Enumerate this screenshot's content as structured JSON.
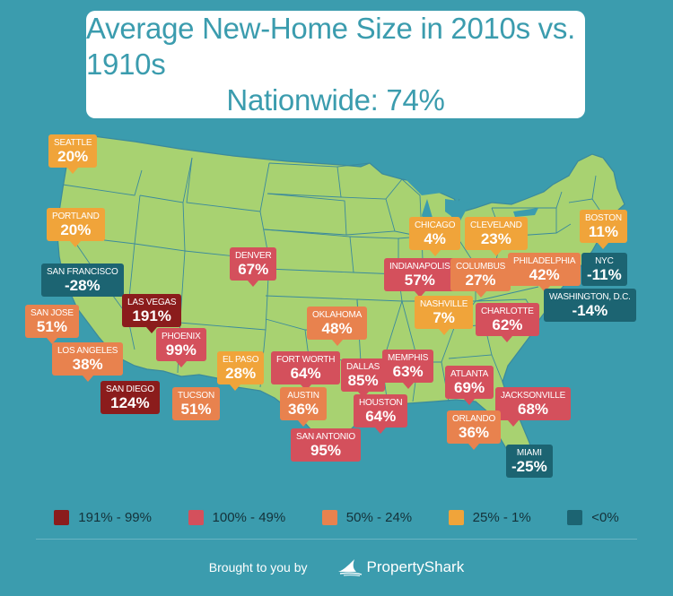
{
  "title": {
    "line1": "Average New-Home Size in 2010s vs. 1910s",
    "line2": "Nationwide: 74%"
  },
  "colors": {
    "background": "#3b9cae",
    "land": "#a8d271",
    "border": "#3b8a9c",
    "dark_red": "#8b1c1c",
    "red": "#d4505c",
    "orange": "#e8824e",
    "yellow": "#f0a43a",
    "teal": "#1c6472"
  },
  "cities": [
    {
      "name": "Seattle",
      "value": "20%",
      "bucket": "yellow"
    },
    {
      "name": "Portland",
      "value": "20%",
      "bucket": "yellow"
    },
    {
      "name": "San Francisco",
      "value": "-28%",
      "bucket": "teal"
    },
    {
      "name": "San Jose",
      "value": "51%",
      "bucket": "orange"
    },
    {
      "name": "Las Vegas",
      "value": "191%",
      "bucket": "dark_red"
    },
    {
      "name": "Los Angeles",
      "value": "38%",
      "bucket": "orange"
    },
    {
      "name": "San Diego",
      "value": "124%",
      "bucket": "dark_red"
    },
    {
      "name": "Phoenix",
      "value": "99%",
      "bucket": "red"
    },
    {
      "name": "Tucson",
      "value": "51%",
      "bucket": "orange"
    },
    {
      "name": "Denver",
      "value": "67%",
      "bucket": "red"
    },
    {
      "name": "El Paso",
      "value": "28%",
      "bucket": "yellow"
    },
    {
      "name": "Fort Worth",
      "value": "64%",
      "bucket": "red"
    },
    {
      "name": "Oklahoma",
      "value": "48%",
      "bucket": "orange"
    },
    {
      "name": "Dallas",
      "value": "85%",
      "bucket": "red"
    },
    {
      "name": "Austin",
      "value": "36%",
      "bucket": "orange"
    },
    {
      "name": "San Antonio",
      "value": "95%",
      "bucket": "red"
    },
    {
      "name": "Houston",
      "value": "64%",
      "bucket": "red"
    },
    {
      "name": "Memphis",
      "value": "63%",
      "bucket": "red"
    },
    {
      "name": "Chicago",
      "value": "4%",
      "bucket": "yellow"
    },
    {
      "name": "Indianapolis",
      "value": "57%",
      "bucket": "red"
    },
    {
      "name": "Nashville",
      "value": "7%",
      "bucket": "yellow"
    },
    {
      "name": "Cleveland",
      "value": "23%",
      "bucket": "yellow"
    },
    {
      "name": "Columbus",
      "value": "27%",
      "bucket": "orange"
    },
    {
      "name": "Charlotte",
      "value": "62%",
      "bucket": "red"
    },
    {
      "name": "Atlanta",
      "value": "69%",
      "bucket": "red"
    },
    {
      "name": "Jacksonville",
      "value": "68%",
      "bucket": "red"
    },
    {
      "name": "Orlando",
      "value": "36%",
      "bucket": "orange"
    },
    {
      "name": "Miami",
      "value": "-25%",
      "bucket": "teal"
    },
    {
      "name": "Philadelphia",
      "value": "42%",
      "bucket": "orange"
    },
    {
      "name": "Boston",
      "value": "11%",
      "bucket": "yellow"
    },
    {
      "name": "NYC",
      "value": "-11%",
      "bucket": "teal"
    },
    {
      "name": "Washington, D.C.",
      "value": "-14%",
      "bucket": "teal"
    }
  ],
  "legend": [
    {
      "label": "191% - 99%",
      "color": "#8b1c1c"
    },
    {
      "label": "100% - 49%",
      "color": "#d4505c"
    },
    {
      "label": "50% - 24%",
      "color": "#e8824e"
    },
    {
      "label": "25% - 1%",
      "color": "#f0a43a"
    },
    {
      "label": "<0%",
      "color": "#1c6472"
    }
  ],
  "footer": {
    "brought_by": "Brought to you by",
    "brand": "PropertyShark",
    "brand_icon": "shark-fin-logo"
  }
}
